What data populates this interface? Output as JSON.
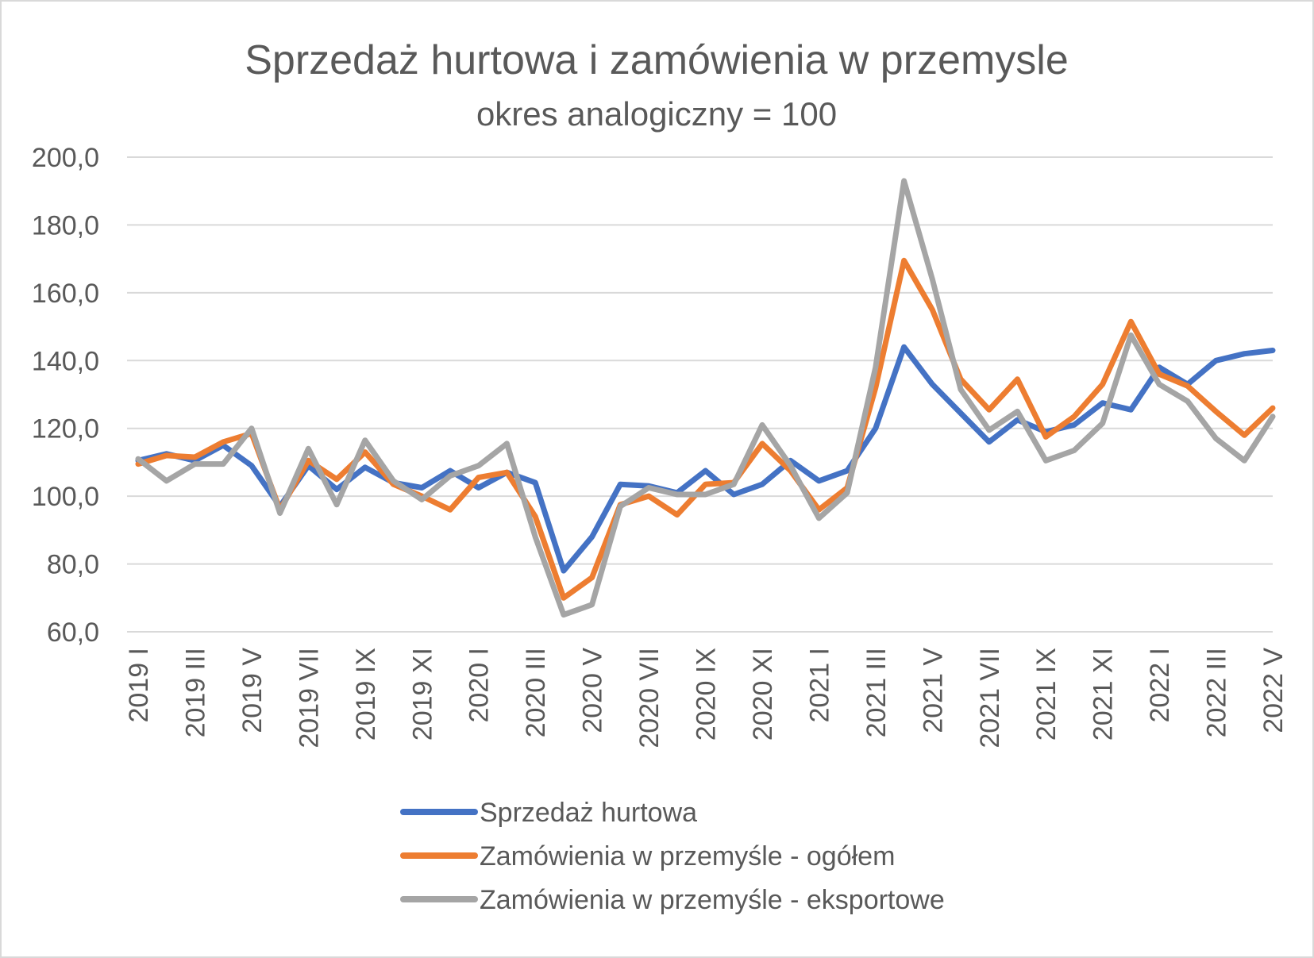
{
  "chart_data": {
    "type": "line",
    "title": "Sprzedaż hurtowa i zamówienia w przemysle",
    "subtitle": "okres analogiczny = 100",
    "xlabel": "",
    "ylabel": "",
    "ylim": [
      60,
      200
    ],
    "yticks": [
      "60,0",
      "80,0",
      "100,0",
      "120,0",
      "140,0",
      "160,0",
      "180,0",
      "200,0"
    ],
    "grid": true,
    "legend_position": "bottom",
    "categories": [
      "2019 I",
      "2019 II",
      "2019 III",
      "2019 IV",
      "2019 V",
      "2019 VI",
      "2019 VII",
      "2019 VIII",
      "2019 IX",
      "2019 X",
      "2019 XI",
      "2019 XII",
      "2020 I",
      "2020 II",
      "2020 III",
      "2020 IV",
      "2020 V",
      "2020 VI",
      "2020 VII",
      "2020 VIII",
      "2020 IX",
      "2020 X",
      "2020 XI",
      "2020 XII",
      "2021 I",
      "2021 II",
      "2021 III",
      "2021 IV",
      "2021 V",
      "2021 VI",
      "2021 VII",
      "2021 VIII",
      "2021 IX",
      "2021 X",
      "2021 XI",
      "2021 XII",
      "2022 I",
      "2022 II",
      "2022 III",
      "2022 IV",
      "2022 V"
    ],
    "shown_x_labels": [
      "2019 I",
      "2019 III",
      "2019 V",
      "2019 VII",
      "2019 IX",
      "2019 XI",
      "2020 I",
      "2020 III",
      "2020 V",
      "2020 VII",
      "2020 IX",
      "2020 XI",
      "2021 I",
      "2021 III",
      "2021 V",
      "2021 VII",
      "2021 IX",
      "2021 XI",
      "2022 I",
      "2022 III",
      "2022 V"
    ],
    "series": [
      {
        "name": "Sprzedaż hurtowa",
        "color": "#4472C4",
        "values": [
          110.5,
          112.5,
          110.5,
          115,
          109,
          97,
          109,
          102,
          108.5,
          104,
          102.5,
          107.5,
          102.5,
          107,
          104,
          78,
          88,
          103.5,
          103,
          101,
          107.5,
          100.5,
          103.5,
          110.5,
          104.5,
          107.5,
          120,
          144,
          133,
          124.5,
          116,
          122.5,
          119,
          121,
          127.5,
          125.5,
          138,
          133,
          140,
          142,
          143
        ]
      },
      {
        "name": "Zamówienia w przemyśle - ogółem",
        "color": "#ED7D31",
        "values": [
          109.5,
          112,
          111.5,
          116,
          118.5,
          96,
          110.5,
          105,
          113,
          103.5,
          100,
          96,
          105.5,
          107,
          94,
          70,
          76,
          97.5,
          100,
          94.5,
          103.5,
          104,
          115.5,
          107.5,
          96,
          102.5,
          132,
          169.5,
          155,
          134.5,
          125.5,
          134.5,
          117.5,
          123.5,
          133,
          151.5,
          136,
          132.5,
          125,
          118,
          126
        ]
      },
      {
        "name": "Zamówienia w przemyśle - eksportowe",
        "color": "#A5A5A5",
        "values": [
          111,
          104.5,
          109.5,
          109.5,
          120,
          95,
          114,
          97.5,
          116.5,
          104.5,
          99,
          106,
          109,
          115.5,
          88,
          65,
          68,
          97,
          102.5,
          100.5,
          100.5,
          103.5,
          121,
          109,
          93.5,
          101,
          138,
          193,
          164,
          131.5,
          119.5,
          125,
          110.5,
          113.5,
          121.5,
          147.5,
          133,
          128,
          117,
          110.5,
          123.5
        ]
      }
    ]
  }
}
